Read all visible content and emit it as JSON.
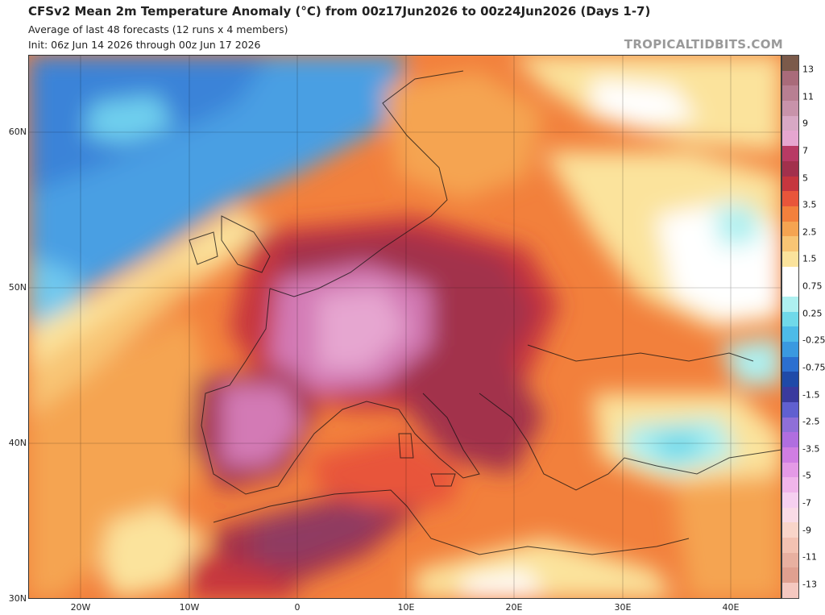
{
  "header": {
    "title": "CFSv2 Mean 2m Temperature Anomaly (°C) from 00z17Jun2026 to 00z24Jun2026 (Days 1-7)",
    "subtitle_1": "Average of last 48 forecasts (12 runs x 4 members)",
    "subtitle_2": "Init: 06z Jun 14 2026 through 00z Jun 17 2026",
    "brand": "TROPICALTIDBITS.COM"
  },
  "axes": {
    "lat_labels": [
      "60N",
      "50N",
      "40N",
      "30N"
    ],
    "lon_labels": [
      "20W",
      "10W",
      "0",
      "10E",
      "20E",
      "30E",
      "40E"
    ]
  },
  "colorbar": {
    "labels": [
      "13",
      "11",
      "9",
      "7",
      "5",
      "3.5",
      "2.5",
      "1.5",
      "0.75",
      "0.25",
      "-0.25",
      "-0.75",
      "-1.5",
      "-2.5",
      "-3.5",
      "-5",
      "-7",
      "-9",
      "-11",
      "-13"
    ],
    "colors": [
      "#7b5a4a",
      "#a96b7a",
      "#b87f92",
      "#c893aa",
      "#d8a8c4",
      "#e6a6d0",
      "#b83a64",
      "#a2304c",
      "#c6363e",
      "#e8553a",
      "#f2803c",
      "#f5a451",
      "#f8c574",
      "#fbe39c",
      "#ffffff",
      "#ffffff",
      "#aef0f0",
      "#70d9ea",
      "#4dbbe8",
      "#3a99e0",
      "#2b6fd0",
      "#1f4aa8",
      "#3a3a9e",
      "#6060d0",
      "#8f6fd8",
      "#b06ee0",
      "#d07ee2",
      "#e49ae6",
      "#f0b5ea",
      "#f6d0f0",
      "#fadbe6",
      "#f9d5c9",
      "#f3c2b2",
      "#e8b0a0",
      "#e0a090",
      "#f5c8c0"
    ]
  }
}
